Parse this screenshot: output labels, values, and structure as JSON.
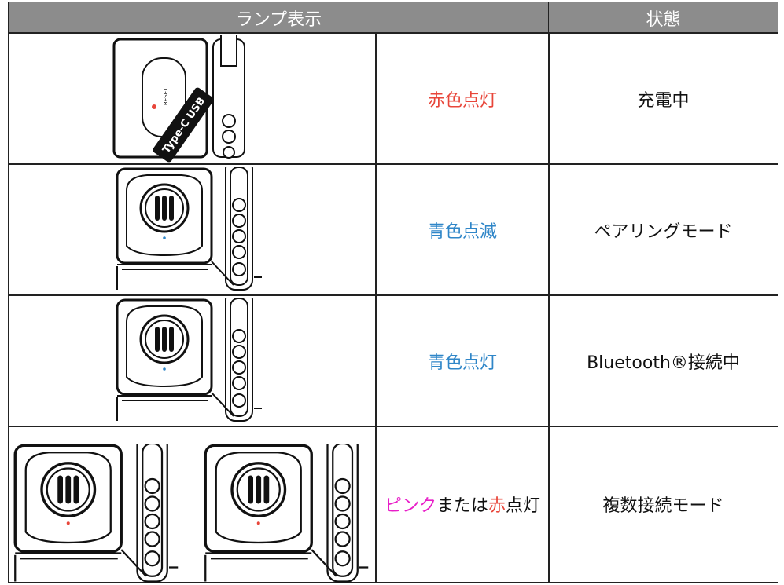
{
  "header": {
    "lamp": "ランプ表示",
    "state": "状態"
  },
  "illustration_labels": {
    "usb": "Type-C USB",
    "reset": "RESET"
  },
  "rows": [
    {
      "lamp": [
        {
          "text": "赤色点灯",
          "color": "#e8463a"
        }
      ],
      "state": "充電中"
    },
    {
      "lamp": [
        {
          "text": "青色点滅",
          "color": "#2f86c8"
        }
      ],
      "state": "ペアリングモード"
    },
    {
      "lamp": [
        {
          "text": "青色点灯",
          "color": "#2f86c8"
        }
      ],
      "state": "Bluetooth®接続中"
    },
    {
      "lamp": [
        {
          "text": "ピンク",
          "color": "#e81ec8"
        },
        {
          "text": "または",
          "color": "#111111"
        },
        {
          "text": "赤",
          "color": "#e8463a"
        },
        {
          "text": "点灯",
          "color": "#111111"
        }
      ],
      "state": "複数接続モード"
    }
  ]
}
